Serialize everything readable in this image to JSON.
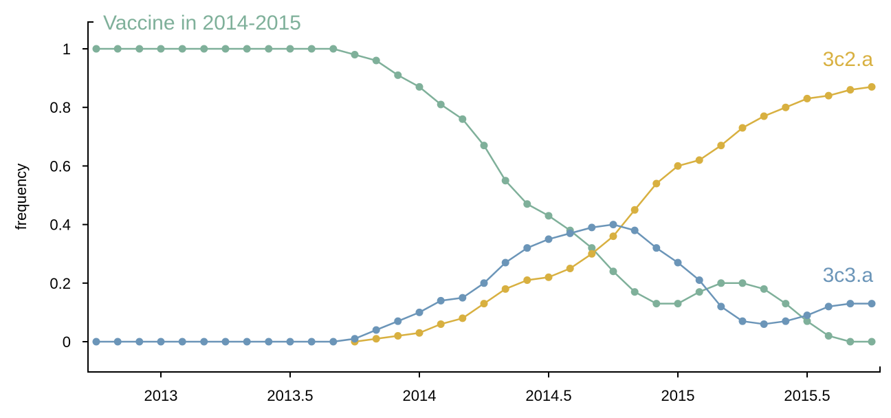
{
  "chart_data": {
    "type": "line",
    "title": "",
    "xlabel": "",
    "ylabel": "frequency",
    "xlim": [
      2012.72,
      2015.78
    ],
    "ylim": [
      -0.1,
      1.1
    ],
    "x_ticks": [
      2013,
      2013.5,
      2014,
      2014.5,
      2015,
      2015.5
    ],
    "x_tick_labels": [
      "2013",
      "2013.5",
      "2014",
      "2014.5",
      "2015",
      "2015.5"
    ],
    "y_ticks": [
      0,
      0.2,
      0.4,
      0.6,
      0.8,
      1
    ],
    "y_tick_labels": [
      "0",
      "0.2",
      "0.4",
      "0.6",
      "0.8",
      "1"
    ],
    "grid": false,
    "legend": "inline labels",
    "x": [
      2012.75,
      2012.833,
      2012.917,
      2013,
      2013.083,
      2013.167,
      2013.25,
      2013.333,
      2013.417,
      2013.5,
      2013.583,
      2013.667,
      2013.75,
      2013.833,
      2013.917,
      2014,
      2014.083,
      2014.167,
      2014.25,
      2014.333,
      2014.417,
      2014.5,
      2014.583,
      2014.667,
      2014.75,
      2014.833,
      2014.917,
      2015,
      2015.083,
      2015.167,
      2015.25,
      2015.333,
      2015.417,
      2015.5,
      2015.583,
      2015.667,
      2015.75
    ],
    "series": [
      {
        "name": "Vaccine in 2014-2015",
        "color": "#7fb09a",
        "label_position": "top-left",
        "values": [
          1,
          1,
          1,
          1,
          1,
          1,
          1,
          1,
          1,
          1,
          1,
          1,
          0.98,
          0.96,
          0.91,
          0.87,
          0.81,
          0.76,
          0.67,
          0.55,
          0.47,
          0.43,
          0.38,
          0.32,
          0.24,
          0.17,
          0.13,
          0.13,
          0.17,
          0.2,
          0.2,
          0.18,
          0.13,
          0.07,
          0.02,
          0,
          0
        ]
      },
      {
        "name": "3c2.a",
        "color": "#d8b040",
        "label_position": "top-right",
        "values": [
          null,
          null,
          null,
          null,
          null,
          null,
          null,
          null,
          null,
          null,
          null,
          null,
          0,
          0.01,
          0.02,
          0.03,
          0.06,
          0.08,
          0.13,
          0.18,
          0.21,
          0.22,
          0.25,
          0.3,
          0.36,
          0.45,
          0.54,
          0.6,
          0.62,
          0.67,
          0.73,
          0.77,
          0.8,
          0.83,
          0.84,
          0.86,
          0.87
        ]
      },
      {
        "name": "3c3.a",
        "color": "#6b95b8",
        "label_position": "right",
        "values": [
          0,
          0,
          0,
          0,
          0,
          0,
          0,
          0,
          0,
          0,
          0,
          0,
          0.01,
          0.04,
          0.07,
          0.1,
          0.14,
          0.15,
          0.2,
          0.27,
          0.32,
          0.35,
          0.37,
          0.39,
          0.4,
          0.38,
          0.32,
          0.27,
          0.21,
          0.12,
          0.07,
          0.06,
          0.07,
          0.09,
          0.12,
          0.13,
          0.13
        ]
      }
    ]
  }
}
